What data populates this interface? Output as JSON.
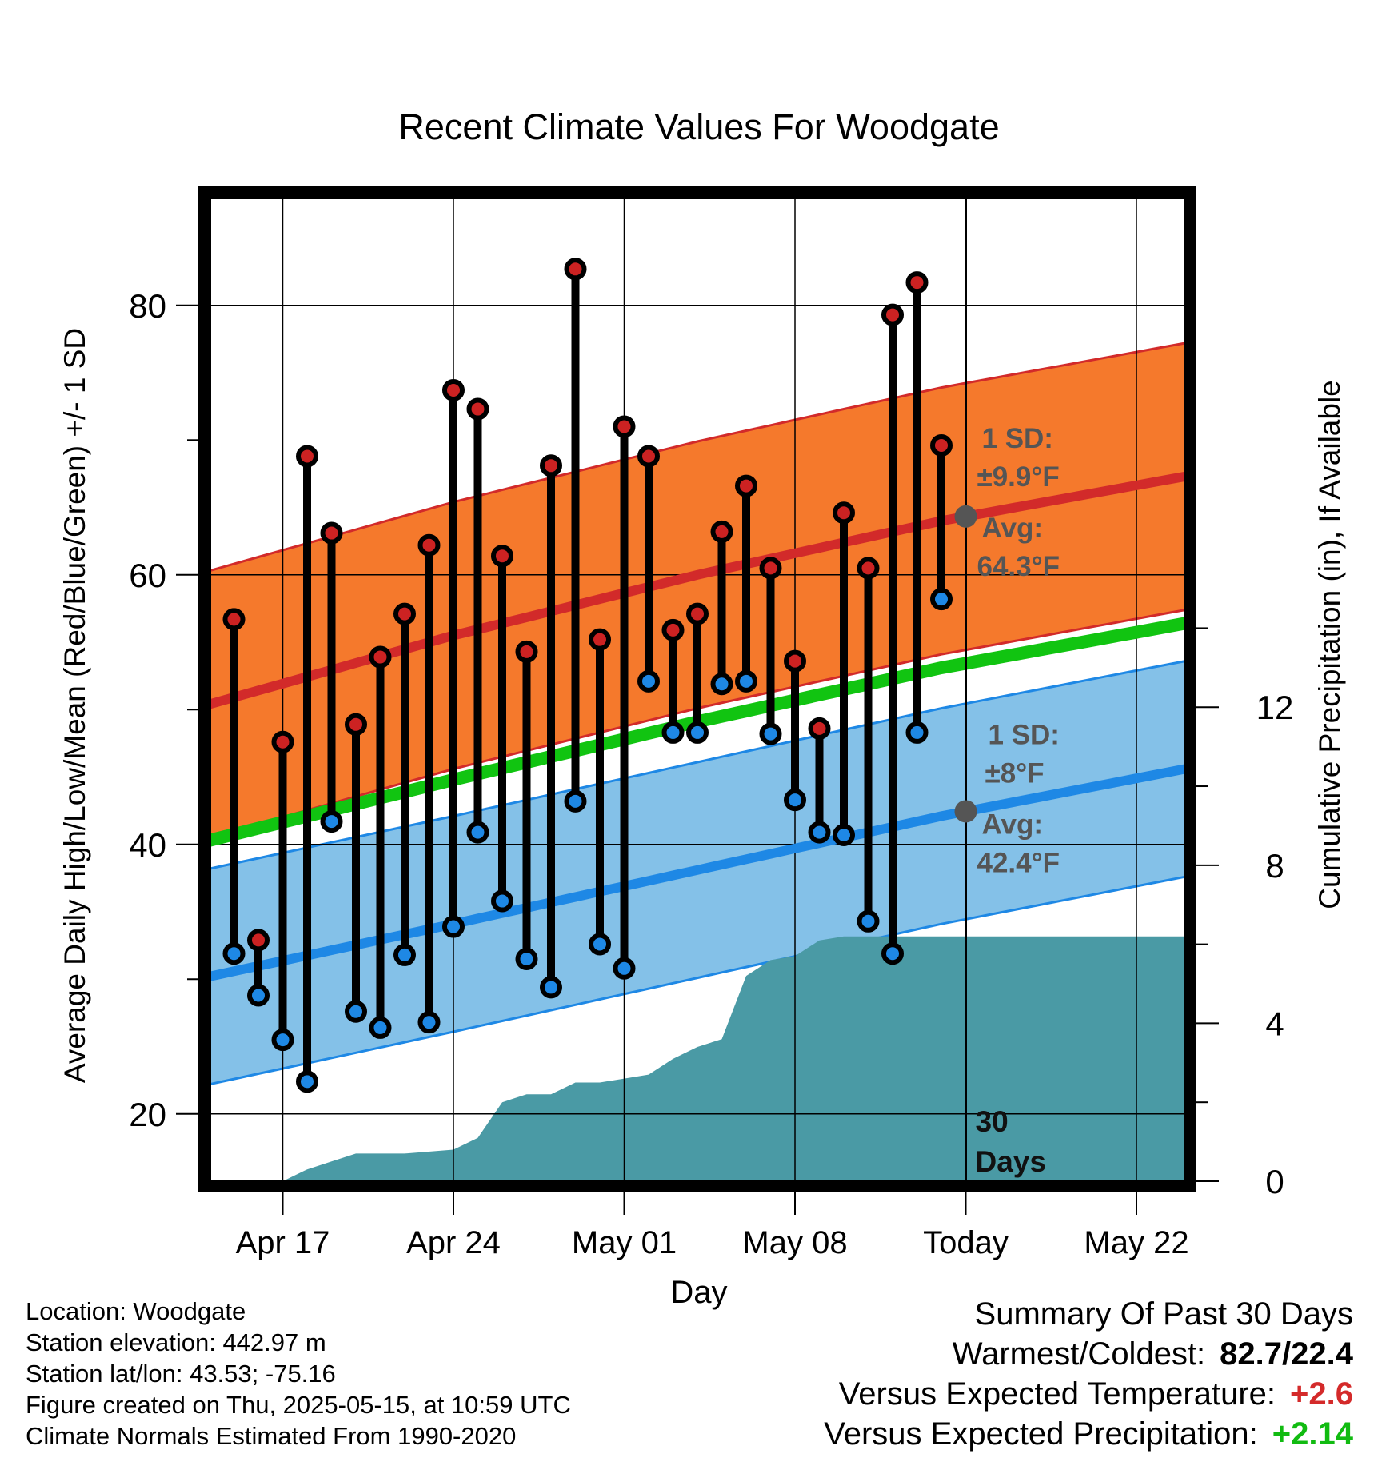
{
  "chart_data": {
    "type": "line",
    "title": "Recent Climate Values For Woodgate",
    "xlabel": "Day",
    "ylabel_left": "Average Daily High/Low/Mean (Red/Blue/Green) +/- 1 SD",
    "ylabel_right": "Cumulative Precipitation (in), If Available",
    "x_tick_labels": [
      "Apr 17",
      "Apr 24",
      "May 01",
      "May 08",
      "Today",
      "May 22"
    ],
    "x_tick_days": [
      "2025-04-17",
      "2025-04-24",
      "2025-05-01",
      "2025-05-08",
      "2025-05-15",
      "2025-05-22"
    ],
    "x_range": [
      "2025-04-14",
      "2025-05-24"
    ],
    "ylim_left": [
      15,
      88
    ],
    "yticks_left": [
      20,
      40,
      60,
      80
    ],
    "ylim_right": [
      0,
      24.9
    ],
    "yticks_right": [
      0,
      4,
      8,
      12
    ],
    "grid": true,
    "today": "2025-05-15",
    "today_label": "30 Days",
    "dates": [
      "2025-04-15",
      "2025-04-16",
      "2025-04-17",
      "2025-04-18",
      "2025-04-19",
      "2025-04-20",
      "2025-04-21",
      "2025-04-22",
      "2025-04-23",
      "2025-04-24",
      "2025-04-25",
      "2025-04-26",
      "2025-04-27",
      "2025-04-28",
      "2025-04-29",
      "2025-04-30",
      "2025-05-01",
      "2025-05-02",
      "2025-05-03",
      "2025-05-04",
      "2025-05-05",
      "2025-05-06",
      "2025-05-07",
      "2025-05-08",
      "2025-05-09",
      "2025-05-10",
      "2025-05-11",
      "2025-05-12",
      "2025-05-13",
      "2025-05-14"
    ],
    "series": [
      {
        "name": "High",
        "color": "#cc2222",
        "values": [
          56.7,
          32.9,
          47.6,
          68.8,
          63.1,
          48.9,
          53.9,
          57.1,
          62.2,
          73.7,
          72.3,
          61.4,
          54.3,
          68.1,
          82.7,
          55.2,
          71.0,
          68.8,
          55.9,
          57.1,
          63.2,
          66.6,
          60.5,
          53.6,
          48.6,
          64.6,
          60.5,
          79.3,
          81.7,
          69.6
        ]
      },
      {
        "name": "Low",
        "color": "#1e88e5",
        "values": [
          31.9,
          28.8,
          25.5,
          22.4,
          41.7,
          27.6,
          26.4,
          31.8,
          26.8,
          33.9,
          40.9,
          35.8,
          31.5,
          29.4,
          43.2,
          32.6,
          30.8,
          52.1,
          48.3,
          48.3,
          51.9,
          52.1,
          48.2,
          43.3,
          40.9,
          40.7,
          34.3,
          31.9,
          48.3,
          58.2
        ]
      }
    ],
    "normals": {
      "x": [
        "2025-04-14",
        "2025-04-24",
        "2025-05-04",
        "2025-05-14",
        "2025-05-24"
      ],
      "high_mean": [
        50.4,
        55.5,
        60.0,
        64.0,
        67.3
      ],
      "low_mean": [
        30.2,
        34.1,
        38.1,
        42.1,
        45.6
      ],
      "mean": [
        40.3,
        44.8,
        49.1,
        53.1,
        56.4
      ],
      "high_sd": 9.9,
      "low_sd": 8
    },
    "precip": {
      "color": "#4a9aa5",
      "x": [
        "2025-04-14",
        "2025-04-17",
        "2025-04-18",
        "2025-04-19",
        "2025-04-20",
        "2025-04-21",
        "2025-04-22",
        "2025-04-24",
        "2025-04-25",
        "2025-04-26",
        "2025-04-27",
        "2025-04-28",
        "2025-04-29",
        "2025-04-30",
        "2025-05-01",
        "2025-05-02",
        "2025-05-03",
        "2025-05-04",
        "2025-05-05",
        "2025-05-06",
        "2025-05-07",
        "2025-05-08",
        "2025-05-09",
        "2025-05-10",
        "2025-05-15",
        "2025-05-24"
      ],
      "values": [
        0,
        0,
        0.3,
        0.5,
        0.7,
        0.7,
        0.7,
        0.8,
        1.1,
        2.0,
        2.2,
        2.2,
        2.5,
        2.5,
        2.6,
        2.7,
        3.1,
        3.4,
        3.6,
        5.2,
        5.6,
        5.7,
        6.1,
        6.2,
        6.2,
        6.2
      ]
    },
    "annotations": {
      "high_sd_label": "1 SD:",
      "high_sd_value": "±9.9°F",
      "high_avg_label": "Avg:",
      "high_avg_value": "64.3°F",
      "low_sd_label": "1 SD:",
      "low_sd_value": "±8°F",
      "low_avg_label": "Avg:",
      "low_avg_value": "42.4°F"
    }
  },
  "colors": {
    "high_band": "#f5792c",
    "high_mean_line": "#d22a2a",
    "low_band": "#84c1e8",
    "low_mean_line": "#1e88e5",
    "mean_line": "#11c411",
    "precip": "#4a9aa5",
    "annotation_text": "#555555",
    "warm_value": "#d42a2a",
    "wet_value": "#11bb11"
  },
  "footer": {
    "location": "Location: Woodgate",
    "elevation": "Station elevation: 442.97 m",
    "latlon": "Station lat/lon: 43.53; -75.16",
    "created": "Figure created on Thu, 2025-05-15, at 10:59 UTC",
    "normals": "Climate Normals Estimated From 1990-2020"
  },
  "summary": {
    "title": "Summary Of Past 30 Days",
    "warmest_coldest_label": "Warmest/Coldest:",
    "warmest_coldest_value": "82.7/22.4",
    "temp_label": "Versus Expected Temperature:",
    "temp_value": "+2.6",
    "precip_label": "Versus Expected Precipitation:",
    "precip_value": "+2.14"
  }
}
